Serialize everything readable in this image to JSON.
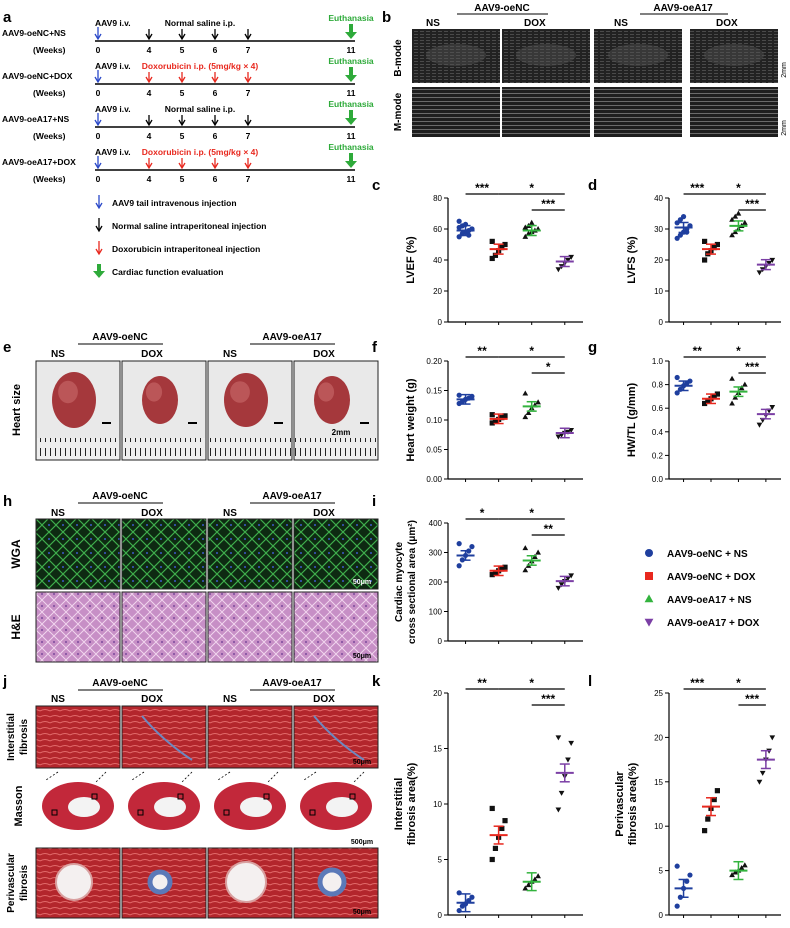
{
  "panel_letters": [
    "a",
    "b",
    "c",
    "d",
    "e",
    "f",
    "g",
    "h",
    "i",
    "j",
    "k",
    "l"
  ],
  "timeline": {
    "rows": [
      {
        "group": "AAV9-oeNC+NS",
        "weeks_label": "(Weeks)",
        "treatment": "Normal saline i.p.",
        "treatment_color": "#000000"
      },
      {
        "group": "AAV9-oeNC+DOX",
        "weeks_label": "(Weeks)",
        "treatment": "Doxorubicin i.p. (5mg/kg × 4)",
        "treatment_color": "#e8281e"
      },
      {
        "group": "AAV9-oeA17+NS",
        "weeks_label": "(Weeks)",
        "treatment": "Normal saline i.p.",
        "treatment_color": "#000000"
      },
      {
        "group": "AAV9-oeA17+DOX",
        "weeks_label": "(Weeks)",
        "treatment": "Doxorubicin i.p. (5mg/kg × 4)",
        "treatment_color": "#e8281e"
      }
    ],
    "injection_label": "AAV9 i.v.",
    "euthanasia_label": "Euthanasia",
    "week_ticks": [
      "0",
      "4",
      "5",
      "6",
      "7",
      "11"
    ],
    "legend": [
      {
        "text": "AAV9 tail intravenous injection",
        "color": "#2a48c8",
        "icon": "thin-arrow"
      },
      {
        "text": "Normal saline intraperitoneal injection",
        "color": "#000000",
        "icon": "thin-arrow"
      },
      {
        "text": "Doxorubicin intraperitoneal injection",
        "color": "#e8281e",
        "icon": "thin-arrow"
      },
      {
        "text": "Cardiac function  evaluation",
        "color": "#2eaa3a",
        "icon": "bold-arrow"
      }
    ]
  },
  "echo": {
    "groups": [
      "AAV9-oeNC",
      "AAV9-oeA17"
    ],
    "sub": [
      "NS",
      "DOX",
      "NS",
      "DOX"
    ],
    "rows": [
      "B-mode",
      "M-mode"
    ],
    "scale": "2mm"
  },
  "heart": {
    "groups": [
      "AAV9-oeNC",
      "AAV9-oeA17"
    ],
    "sub": [
      "NS",
      "DOX",
      "NS",
      "DOX"
    ],
    "row_label": "Heart size",
    "scale": "2mm"
  },
  "histo_h": {
    "groups": [
      "AAV9-oeNC",
      "AAV9-oeA17"
    ],
    "sub": [
      "NS",
      "DOX",
      "NS",
      "DOX"
    ],
    "rows": [
      "WGA",
      "H&E"
    ],
    "scale": "50μm"
  },
  "histo_j": {
    "groups": [
      "AAV9-oeNC",
      "AAV9-oeA17"
    ],
    "sub": [
      "NS",
      "DOX",
      "NS",
      "DOX"
    ],
    "rows": [
      "Interstitial fibrosis",
      "Masson",
      "Perivascular fibrosis"
    ],
    "row_lines": [
      [
        "Interstitial",
        "fibrosis"
      ],
      [
        "Masson"
      ],
      [
        "Perivascular",
        "fibrosis"
      ]
    ],
    "scale_small": "50μm",
    "scale_large": "500μm"
  },
  "legend": {
    "entries": [
      {
        "name": "AAV9-oeNC + NS",
        "color": "#1f3f9e",
        "marker": "circle"
      },
      {
        "name": "AAV9-oeNC + DOX",
        "color": "#e8281e",
        "marker": "square"
      },
      {
        "name": "AAV9-oeA17 + NS",
        "color": "#33b33e",
        "marker": "triangle"
      },
      {
        "name": "AAV9-oeA17 + DOX",
        "color": "#7b3fa5",
        "marker": "triangle-down"
      }
    ]
  },
  "chart_data": [
    {
      "panel": "c",
      "type": "scatter",
      "ylabel": "LVEF (%)",
      "ylim": [
        0,
        80
      ],
      "yticks": [
        "0",
        "20",
        "40",
        "60",
        "80"
      ],
      "means": [
        59,
        47,
        59,
        39
      ],
      "points": [
        [
          55,
          57,
          58,
          59,
          60,
          61,
          62,
          63,
          56,
          60,
          65
        ],
        [
          41,
          43,
          46,
          48,
          50,
          52
        ],
        [
          55,
          57,
          58,
          59,
          60,
          61,
          62,
          64
        ],
        [
          34,
          36,
          38,
          40,
          42
        ]
      ],
      "sig": [
        {
          "from": 0,
          "to": 1,
          "label": "***"
        },
        {
          "from": 1,
          "to": 3,
          "label": "*"
        },
        {
          "from": 2,
          "to": 3,
          "label": "***"
        }
      ]
    },
    {
      "panel": "d",
      "type": "scatter",
      "ylabel": "LVFS (%)",
      "ylim": [
        0,
        40
      ],
      "yticks": [
        "0",
        "10",
        "20",
        "30",
        "40"
      ],
      "means": [
        30.5,
        23.5,
        31,
        18.5
      ],
      "points": [
        [
          27,
          28,
          29,
          30,
          31,
          32,
          33,
          34,
          29,
          31
        ],
        [
          20,
          22,
          23,
          24,
          25,
          26
        ],
        [
          28,
          29,
          30,
          31,
          32,
          33,
          34,
          35
        ],
        [
          16,
          17,
          18,
          19,
          20
        ]
      ],
      "sig": [
        {
          "from": 0,
          "to": 1,
          "label": "***"
        },
        {
          "from": 1,
          "to": 3,
          "label": "*"
        },
        {
          "from": 2,
          "to": 3,
          "label": "***"
        }
      ]
    },
    {
      "panel": "f",
      "type": "scatter",
      "ylabel": "Heart weight (g)",
      "ylim": [
        0,
        0.2
      ],
      "yticks": [
        "0.00",
        "0.05",
        "0.10",
        "0.15",
        "0.20"
      ],
      "means": [
        0.135,
        0.102,
        0.123,
        0.078
      ],
      "points": [
        [
          0.128,
          0.131,
          0.135,
          0.137,
          0.14,
          0.142
        ],
        [
          0.095,
          0.099,
          0.101,
          0.104,
          0.107,
          0.109
        ],
        [
          0.105,
          0.112,
          0.12,
          0.125,
          0.13,
          0.145
        ],
        [
          0.072,
          0.075,
          0.078,
          0.08,
          0.083
        ]
      ],
      "sig": [
        {
          "from": 0,
          "to": 1,
          "label": "**"
        },
        {
          "from": 1,
          "to": 3,
          "label": "*"
        },
        {
          "from": 2,
          "to": 3,
          "label": "*"
        }
      ]
    },
    {
      "panel": "g",
      "type": "scatter",
      "ylabel": "HW/TL (g/mm)",
      "ylim": [
        0,
        1.0
      ],
      "yticks": [
        "0.0",
        "0.2",
        "0.4",
        "0.6",
        "0.8",
        "1.0"
      ],
      "means": [
        0.79,
        0.68,
        0.74,
        0.55
      ],
      "points": [
        [
          0.73,
          0.76,
          0.79,
          0.81,
          0.83,
          0.86
        ],
        [
          0.64,
          0.66,
          0.68,
          0.7,
          0.72
        ],
        [
          0.64,
          0.69,
          0.73,
          0.77,
          0.8,
          0.85
        ],
        [
          0.46,
          0.5,
          0.54,
          0.58,
          0.61
        ]
      ],
      "sig": [
        {
          "from": 0,
          "to": 1,
          "label": "**"
        },
        {
          "from": 1,
          "to": 3,
          "label": "*"
        },
        {
          "from": 2,
          "to": 3,
          "label": "***"
        }
      ]
    },
    {
      "panel": "i",
      "type": "scatter",
      "ylabel": "Cardiac  myocyte cross sectional area (μm²)",
      "ylim": [
        0,
        400
      ],
      "yticks": [
        "0",
        "100",
        "200",
        "300",
        "400"
      ],
      "means": [
        290,
        238,
        273,
        203
      ],
      "points": [
        [
          255,
          275,
          290,
          305,
          320,
          330
        ],
        [
          225,
          232,
          238,
          244,
          250
        ],
        [
          240,
          255,
          270,
          285,
          300,
          315
        ],
        [
          180,
          192,
          203,
          213,
          222
        ]
      ],
      "sig": [
        {
          "from": 0,
          "to": 1,
          "label": "*"
        },
        {
          "from": 1,
          "to": 3,
          "label": "*"
        },
        {
          "from": 2,
          "to": 3,
          "label": "**"
        }
      ]
    },
    {
      "panel": "k",
      "type": "scatter",
      "ylabel": "Interstitial fibrosis area(%)",
      "ylim": [
        0,
        20
      ],
      "yticks": [
        "0",
        "5",
        "10",
        "15",
        "20"
      ],
      "means": [
        1.1,
        7.2,
        3.0,
        12.8
      ],
      "points": [
        [
          0.4,
          0.8,
          1.0,
          1.3,
          1.6,
          2.0
        ],
        [
          5.0,
          6.0,
          7.0,
          7.8,
          8.5,
          9.6
        ],
        [
          2.4,
          2.7,
          3.0,
          3.2,
          3.5
        ],
        [
          9.5,
          11.0,
          12.5,
          14.0,
          15.5,
          16.0
        ]
      ],
      "sig": [
        {
          "from": 0,
          "to": 1,
          "label": "**"
        },
        {
          "from": 1,
          "to": 3,
          "label": "*"
        },
        {
          "from": 2,
          "to": 3,
          "label": "***"
        }
      ]
    },
    {
      "panel": "l",
      "type": "scatter",
      "ylabel": "Perivascular fibrosis area(%)",
      "ylim": [
        0,
        25
      ],
      "yticks": [
        "0",
        "5",
        "10",
        "15",
        "20",
        "25"
      ],
      "means": [
        3.0,
        12.2,
        5.0,
        17.5
      ],
      "points": [
        [
          1.0,
          2.0,
          3.0,
          3.8,
          4.5,
          5.5
        ],
        [
          9.5,
          10.8,
          12.0,
          13.0,
          14.0
        ],
        [
          4.5,
          4.8,
          5.0,
          5.3,
          5.6
        ],
        [
          15.0,
          16.0,
          17.5,
          18.5,
          20.0
        ]
      ],
      "sig": [
        {
          "from": 0,
          "to": 1,
          "label": "***"
        },
        {
          "from": 1,
          "to": 3,
          "label": "*"
        },
        {
          "from": 2,
          "to": 3,
          "label": "***"
        }
      ]
    }
  ]
}
